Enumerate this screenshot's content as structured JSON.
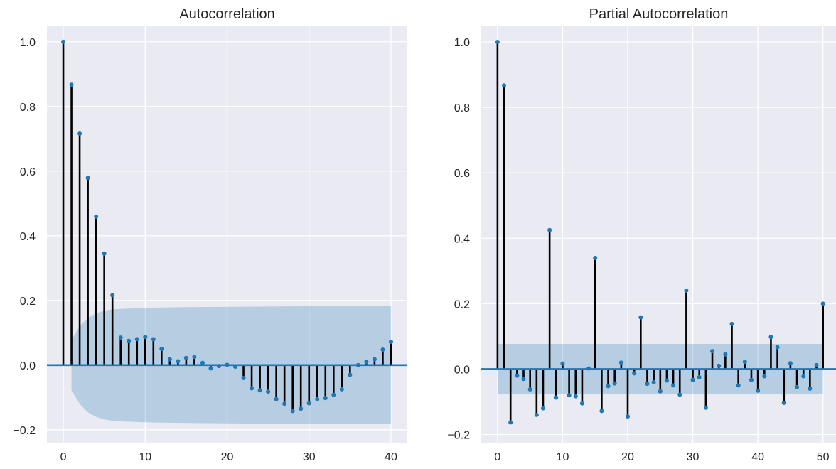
{
  "theme": {
    "panel_bg": "#eaeaf2",
    "grid": "#ffffff",
    "stem": "#000000",
    "marker": "#1f77b4",
    "baseline": "#1f77b4",
    "band": "#1f77b4",
    "text": "#262626"
  },
  "chart_data": [
    {
      "type": "stem",
      "title": "Autocorrelation",
      "xlabel": "",
      "ylabel": "",
      "xlim": [
        -2,
        42
      ],
      "ylim": [
        -0.24,
        1.05
      ],
      "xticks": [
        0,
        10,
        20,
        30,
        40
      ],
      "yticks": [
        -0.2,
        0.0,
        0.2,
        0.4,
        0.6,
        0.8,
        1.0
      ],
      "ytick_labels": [
        "−0.2",
        "0.0",
        "0.2",
        "0.4",
        "0.6",
        "0.8",
        "1.0"
      ],
      "grid": true,
      "x": [
        0,
        1,
        2,
        3,
        4,
        5,
        6,
        7,
        8,
        9,
        10,
        11,
        12,
        13,
        14,
        15,
        16,
        17,
        18,
        19,
        20,
        21,
        22,
        23,
        24,
        25,
        26,
        27,
        28,
        29,
        30,
        31,
        32,
        33,
        34,
        35,
        36,
        37,
        38,
        39,
        40
      ],
      "values": [
        1.0,
        0.867,
        0.716,
        0.579,
        0.459,
        0.345,
        0.216,
        0.085,
        0.075,
        0.08,
        0.087,
        0.08,
        0.05,
        0.018,
        0.012,
        0.022,
        0.025,
        0.007,
        -0.01,
        -0.003,
        0.001,
        -0.005,
        -0.04,
        -0.072,
        -0.078,
        -0.082,
        -0.105,
        -0.12,
        -0.142,
        -0.135,
        -0.118,
        -0.105,
        -0.102,
        -0.092,
        -0.075,
        -0.03,
        0.0,
        0.01,
        0.018,
        0.048,
        0.072
      ],
      "confidence_band": {
        "x": [
          1,
          2,
          3,
          4,
          5,
          6,
          7,
          8,
          9,
          10,
          12,
          15,
          20,
          25,
          30,
          35,
          40
        ],
        "upper": [
          0.078,
          0.12,
          0.146,
          0.16,
          0.168,
          0.172,
          0.174,
          0.175,
          0.176,
          0.177,
          0.178,
          0.179,
          0.18,
          0.181,
          0.182,
          0.182,
          0.182
        ],
        "lower": [
          -0.078,
          -0.12,
          -0.146,
          -0.16,
          -0.168,
          -0.172,
          -0.174,
          -0.175,
          -0.176,
          -0.177,
          -0.178,
          -0.179,
          -0.18,
          -0.181,
          -0.182,
          -0.182,
          -0.182
        ]
      }
    },
    {
      "type": "stem",
      "title": "Partial Autocorrelation",
      "xlabel": "",
      "ylabel": "",
      "xlim": [
        -2.5,
        52
      ],
      "ylim": [
        -0.225,
        1.05
      ],
      "xticks": [
        0,
        10,
        20,
        30,
        40,
        50
      ],
      "yticks": [
        -0.2,
        0.0,
        0.2,
        0.4,
        0.6,
        0.8,
        1.0
      ],
      "ytick_labels": [
        "−0.2",
        "0.0",
        "0.2",
        "0.4",
        "0.6",
        "0.8",
        "1.0"
      ],
      "grid": true,
      "x": [
        0,
        1,
        2,
        3,
        4,
        5,
        6,
        7,
        8,
        9,
        10,
        11,
        12,
        13,
        14,
        15,
        16,
        17,
        18,
        19,
        20,
        21,
        22,
        23,
        24,
        25,
        26,
        27,
        28,
        29,
        30,
        31,
        32,
        33,
        34,
        35,
        36,
        37,
        38,
        39,
        40,
        41,
        42,
        43,
        44,
        45,
        46,
        47,
        48,
        49,
        50
      ],
      "values": [
        1.0,
        0.867,
        -0.163,
        -0.02,
        -0.03,
        -0.062,
        -0.14,
        -0.12,
        0.425,
        -0.087,
        0.017,
        -0.08,
        -0.083,
        -0.105,
        0.002,
        0.34,
        -0.128,
        -0.052,
        -0.044,
        0.02,
        -0.145,
        -0.013,
        0.158,
        -0.045,
        -0.04,
        -0.068,
        -0.035,
        -0.05,
        -0.078,
        0.24,
        -0.033,
        -0.025,
        -0.118,
        0.055,
        0.01,
        0.045,
        0.138,
        -0.05,
        0.022,
        -0.033,
        -0.066,
        -0.022,
        0.098,
        0.067,
        -0.103,
        0.018,
        -0.055,
        -0.022,
        -0.06,
        0.012,
        0.2
      ],
      "confidence_band": {
        "x": [
          0,
          50
        ],
        "upper": [
          0.077,
          0.077
        ],
        "lower": [
          -0.077,
          -0.077
        ]
      }
    }
  ]
}
